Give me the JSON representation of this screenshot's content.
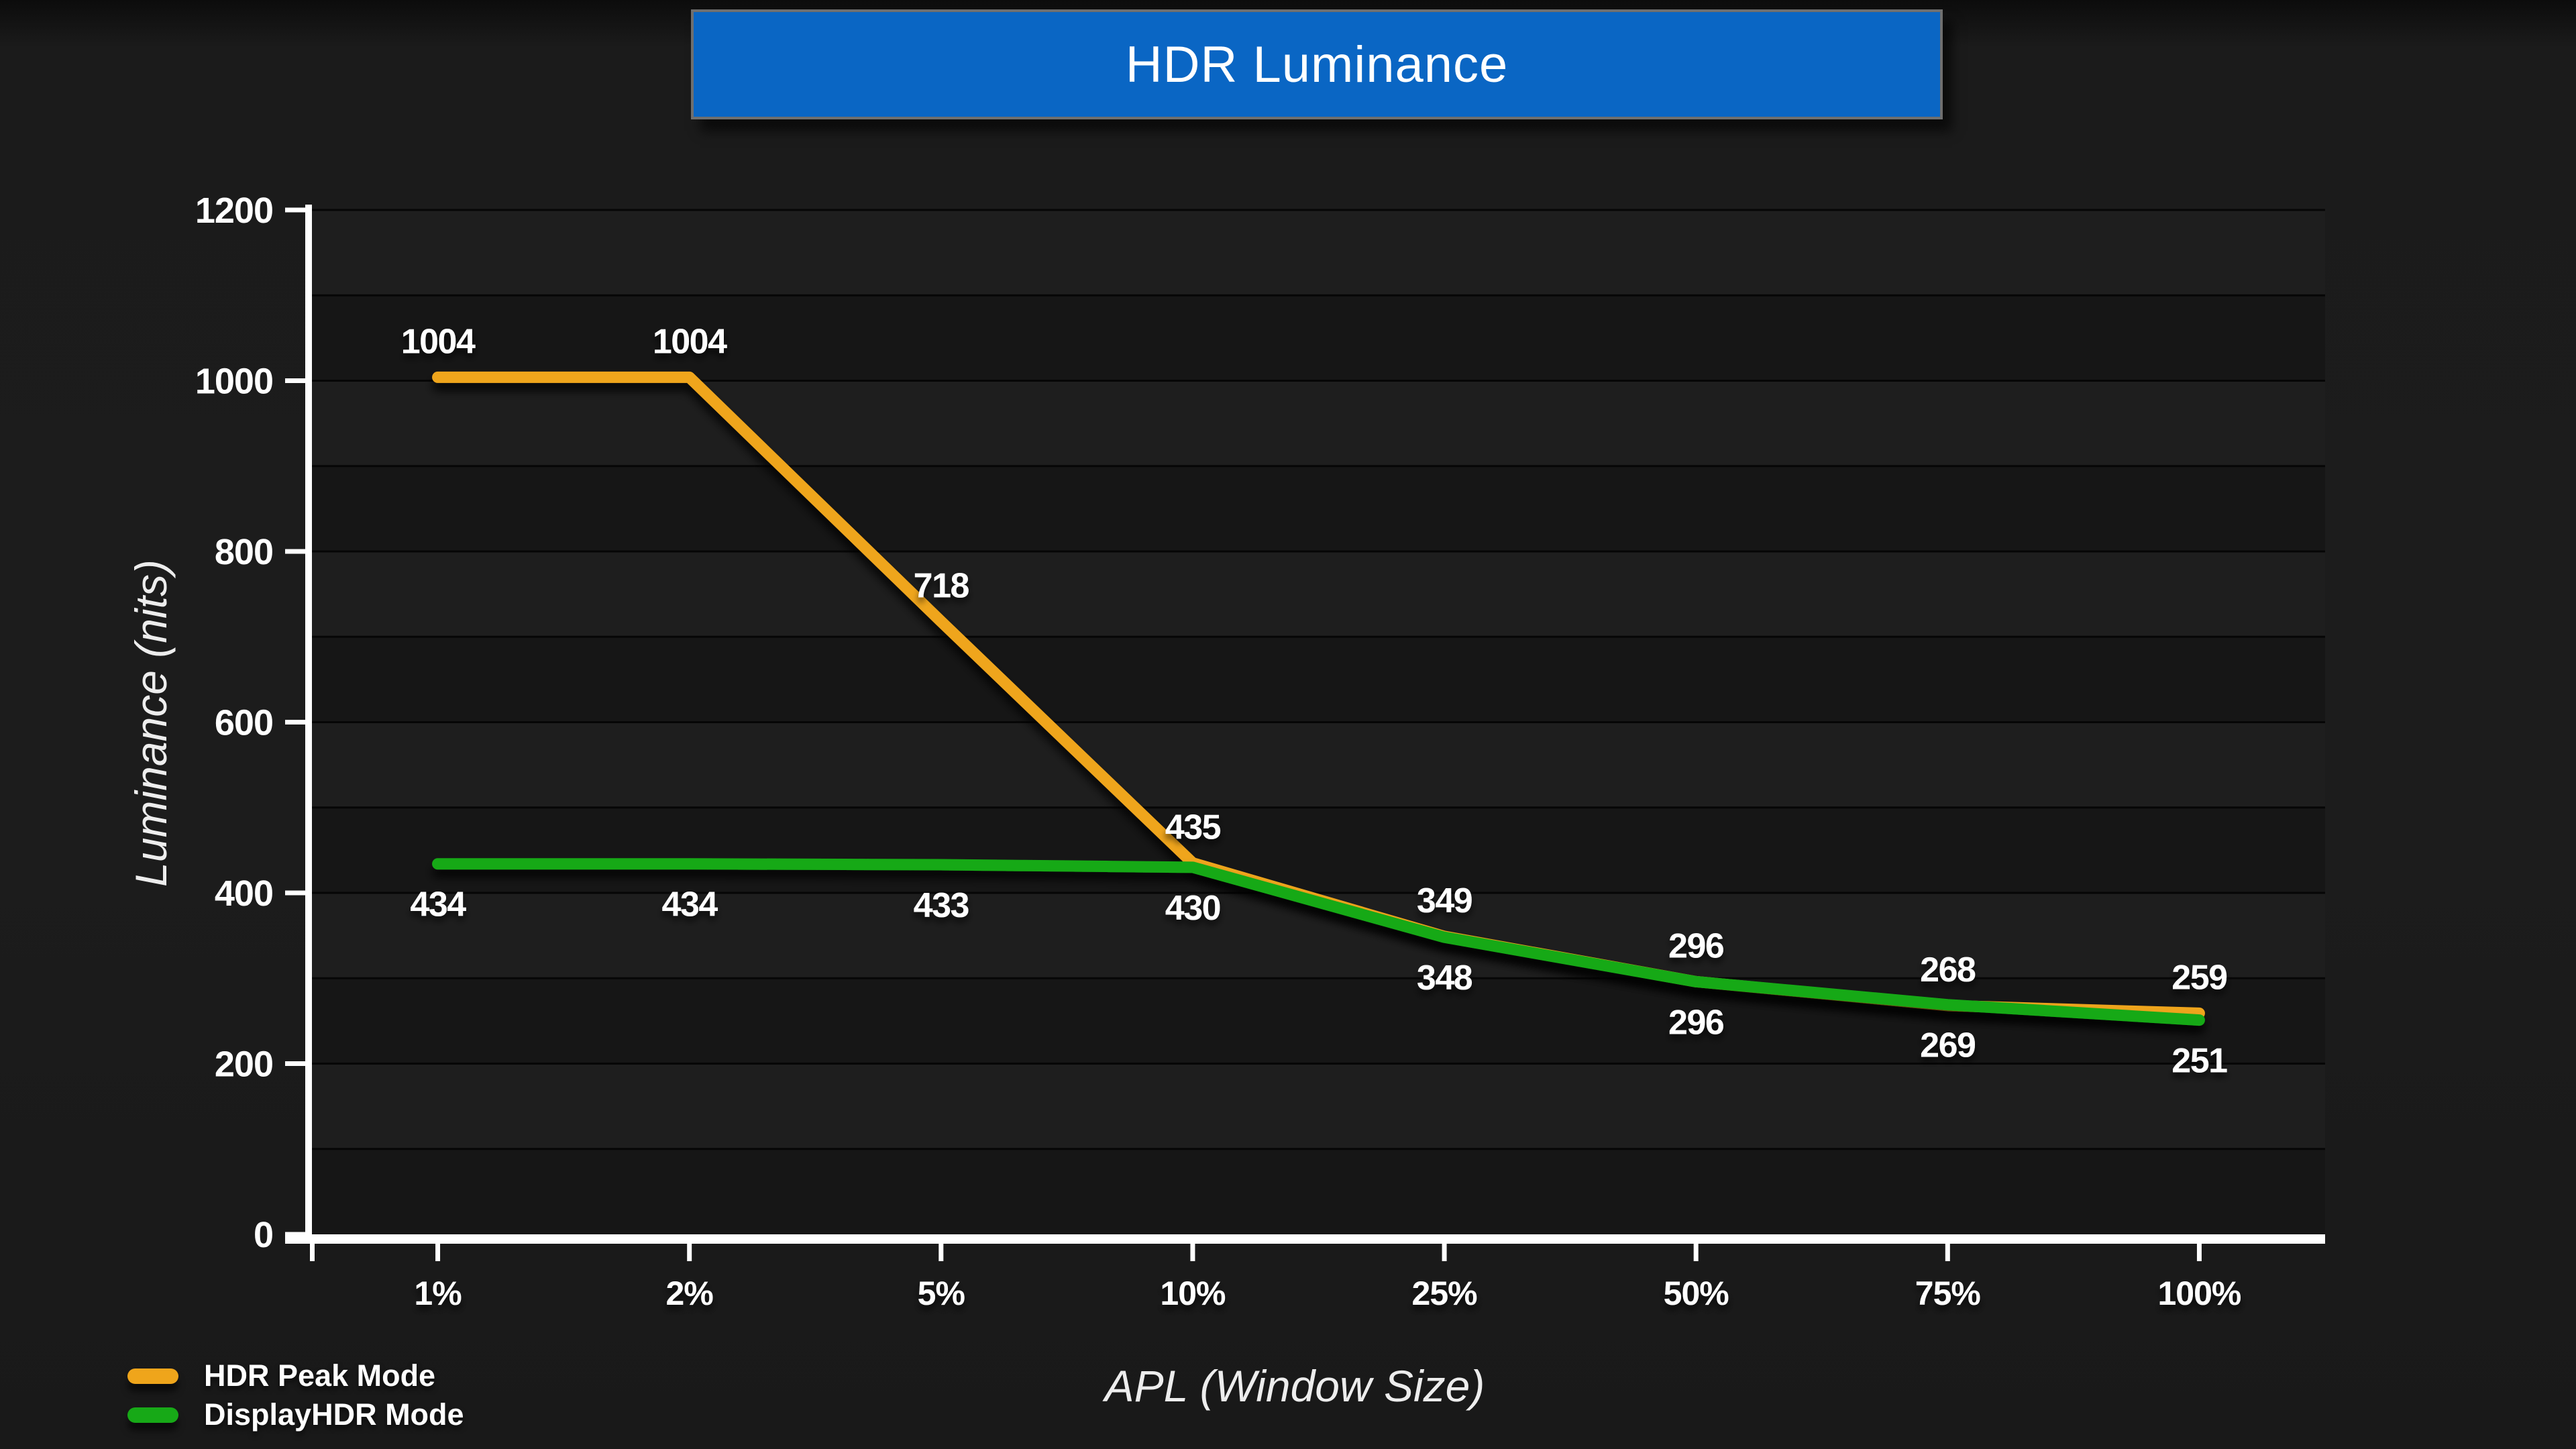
{
  "title": "HDR Luminance",
  "colors": {
    "banner_background": "#0a66c4",
    "banner_border": "#6f6f6f",
    "page_background": "#1b1b1b",
    "plot_band_dark": "#161616",
    "plot_band_light": "#1e1e1e",
    "gridline": "#060606",
    "axis": "#ffffff",
    "text": "#ffffff",
    "hdr_peak_line": "#efa51b",
    "displayhdr_line": "#17a917"
  },
  "legend": {
    "entries": [
      {
        "label": "HDR Peak Mode",
        "color": "#efa51b"
      },
      {
        "label": "DisplayHDR Mode",
        "color": "#17a917"
      }
    ]
  },
  "chart_data": {
    "type": "line",
    "title": "HDR Luminance",
    "xlabel": "APL (Window Size)",
    "ylabel": "Luminance (nits)",
    "categories": [
      "1%",
      "2%",
      "5%",
      "10%",
      "25%",
      "50%",
      "75%",
      "100%"
    ],
    "series": [
      {
        "name": "HDR Peak Mode",
        "color": "#efa51b",
        "values": [
          1004,
          1004,
          718,
          435,
          349,
          296,
          268,
          259
        ],
        "label_position": "above"
      },
      {
        "name": "DisplayHDR Mode",
        "color": "#17a917",
        "values": [
          434,
          434,
          433,
          430,
          348,
          296,
          269,
          251
        ],
        "label_position": "below"
      }
    ],
    "ylim": [
      0,
      1200
    ],
    "y_tick_step": 200,
    "y_tick_labels": [
      "0",
      "200",
      "400",
      "600",
      "800",
      "1000",
      "1200"
    ],
    "grid_step": 100,
    "grid": true,
    "legend_position": "bottom-left"
  }
}
